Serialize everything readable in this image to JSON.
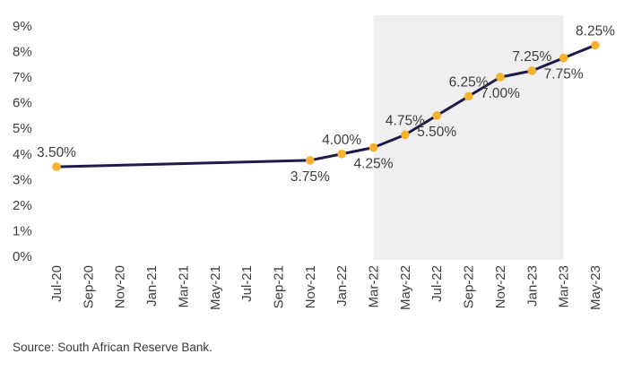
{
  "chart_data": {
    "type": "line",
    "categories": [
      "Jul-20",
      "Sep-20",
      "Nov-20",
      "Jan-21",
      "Mar-21",
      "May-21",
      "Jul-21",
      "Sep-21",
      "Nov-21",
      "Jan-22",
      "Mar-22",
      "May-22",
      "Jul-22",
      "Sep-22",
      "Nov-22",
      "Jan-23",
      "Mar-23",
      "May-23"
    ],
    "yticks": [
      "0%",
      "1%",
      "2%",
      "3%",
      "4%",
      "5%",
      "6%",
      "7%",
      "8%",
      "9%"
    ],
    "ylim": [
      0,
      9
    ],
    "grid": false,
    "series": [
      {
        "name": "",
        "points": [
          {
            "x": "Jul-20",
            "y": 3.5,
            "label": "3.50%",
            "label_pos": "above"
          },
          {
            "x": "Nov-21",
            "y": 3.75,
            "label": "3.75%",
            "label_pos": "below"
          },
          {
            "x": "Jan-22",
            "y": 4.0,
            "label": "4.00%",
            "label_pos": "above"
          },
          {
            "x": "Mar-22",
            "y": 4.25,
            "label": "4.25%",
            "label_pos": "below"
          },
          {
            "x": "May-22",
            "y": 4.75,
            "label": "4.75%",
            "label_pos": "above"
          },
          {
            "x": "Jul-22",
            "y": 5.5,
            "label": "5.50%",
            "label_pos": "below"
          },
          {
            "x": "Sep-22",
            "y": 6.25,
            "label": "6.25%",
            "label_pos": "above"
          },
          {
            "x": "Nov-22",
            "y": 7.0,
            "label": "7.00%",
            "label_pos": "below"
          },
          {
            "x": "Jan-23",
            "y": 7.25,
            "label": "7.25%",
            "label_pos": "above"
          },
          {
            "x": "Mar-23",
            "y": 7.75,
            "label": "7.75%",
            "label_pos": "below"
          },
          {
            "x": "May-23",
            "y": 8.25,
            "label": "8.25%",
            "label_pos": "above"
          }
        ]
      }
    ],
    "shaded_region": {
      "from": "Mar-22",
      "to": "Mar-23"
    },
    "colors": {
      "line": "#201a4a",
      "marker": "#f5b22d",
      "shade": "#efefef"
    }
  },
  "source": "Source: South African Reserve Bank."
}
